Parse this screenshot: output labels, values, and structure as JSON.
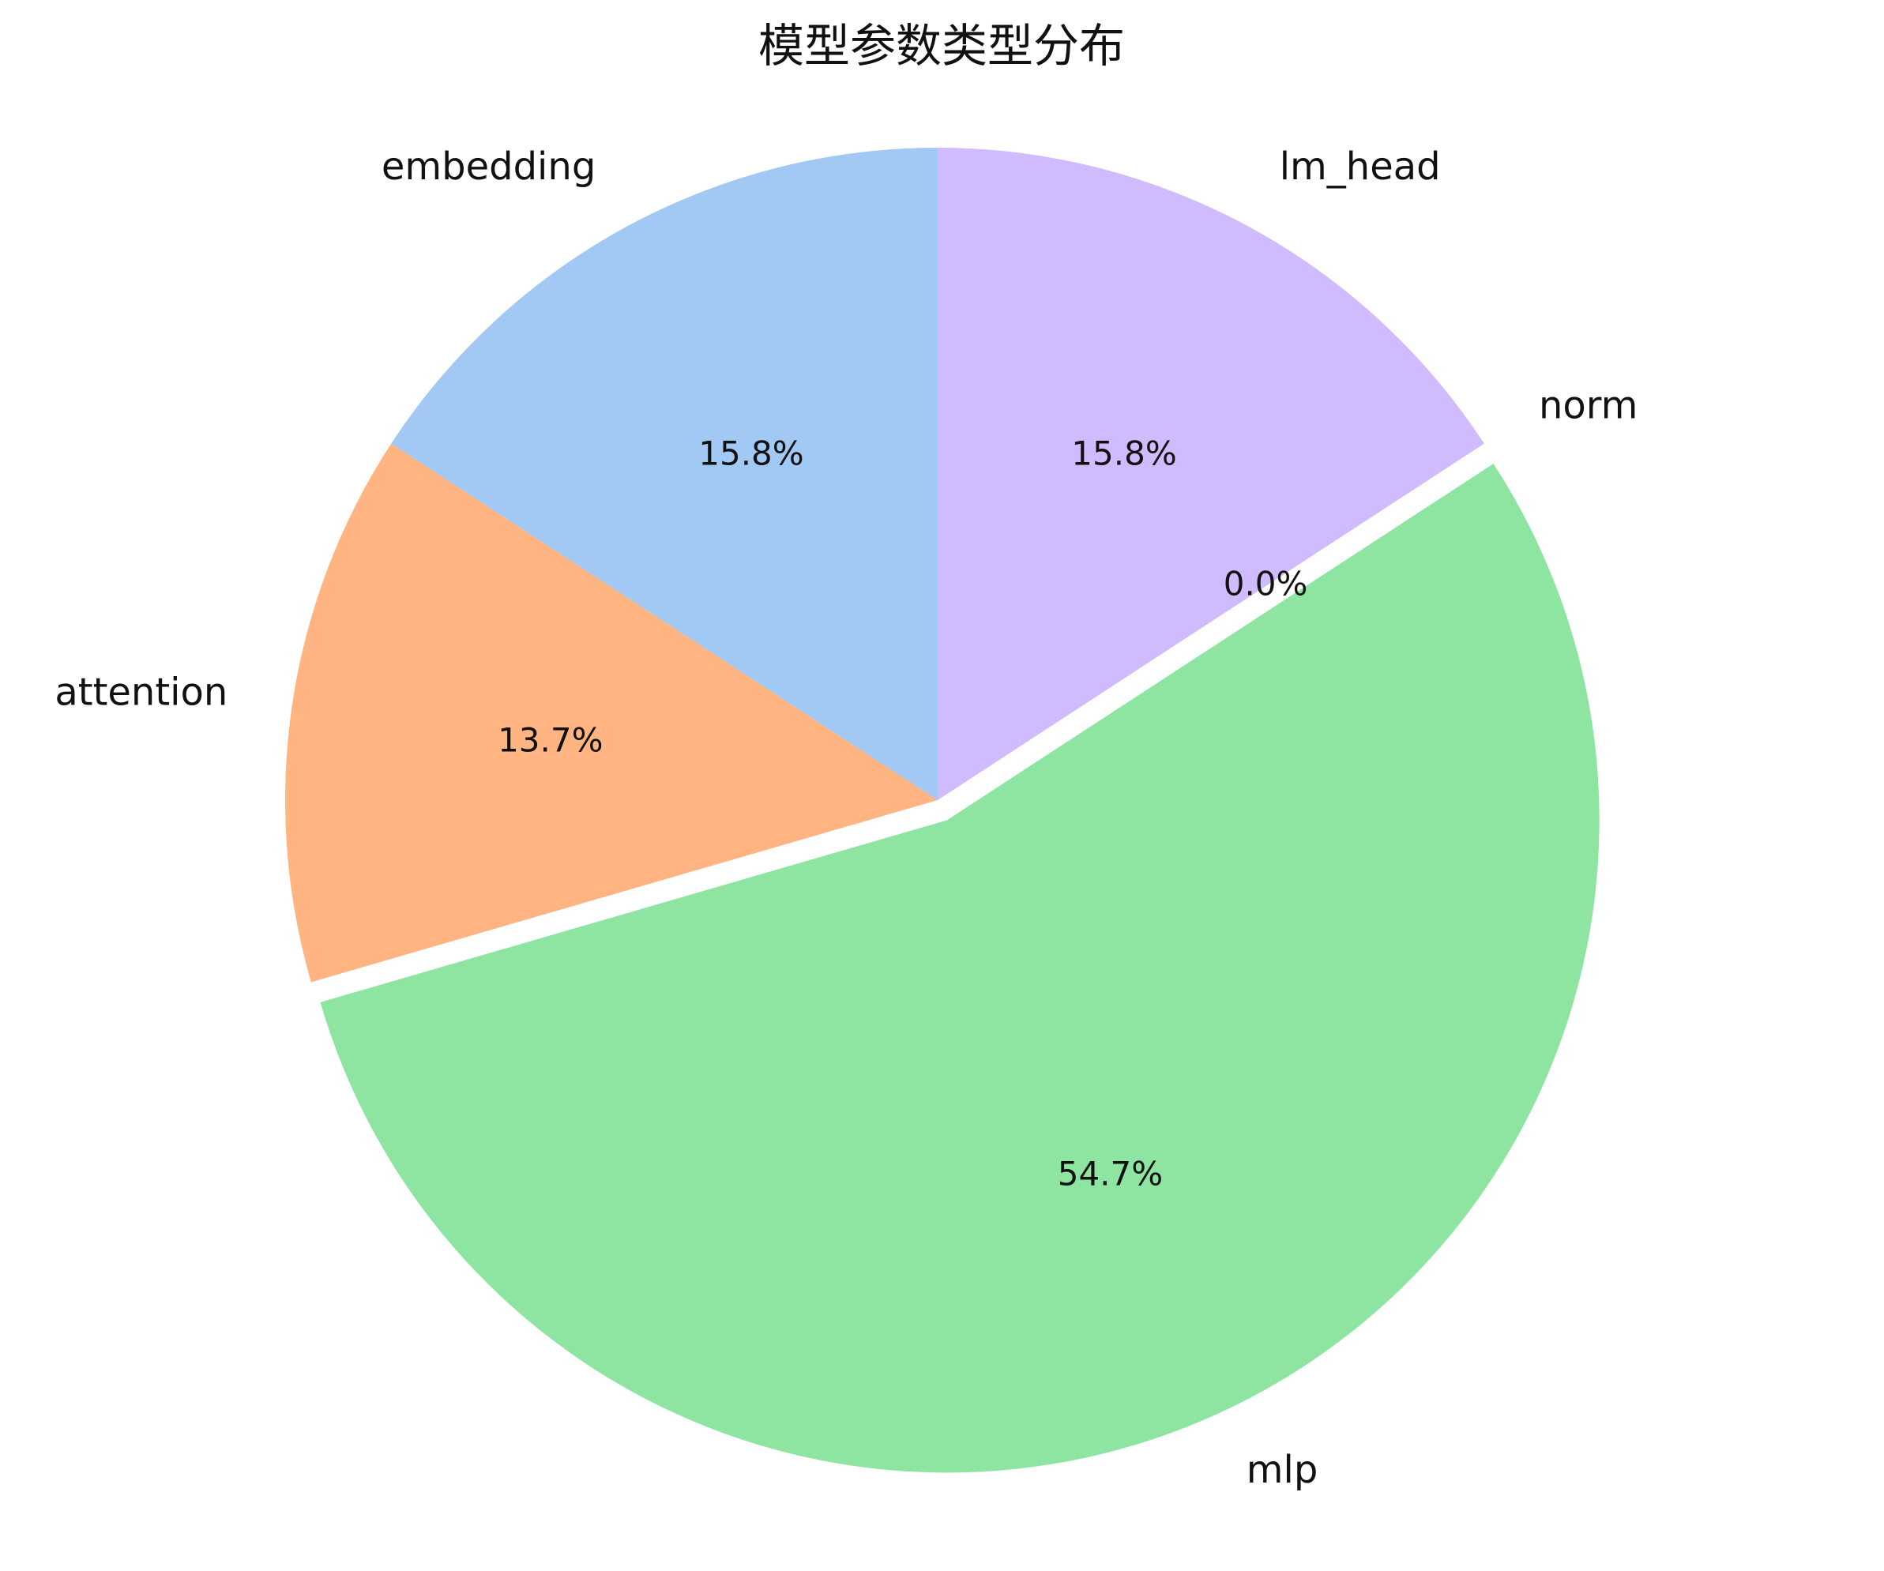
{
  "chart_data": {
    "type": "pie",
    "title": "模型参数类型分布",
    "categories": [
      "embedding",
      "attention",
      "mlp",
      "norm",
      "lm_head"
    ],
    "values": [
      15.8,
      13.7,
      54.7,
      0.0,
      15.8
    ],
    "percent_labels": [
      "15.8%",
      "13.7%",
      "54.7%",
      "0.0%",
      "15.8%"
    ],
    "colors": [
      "#a1c9f4",
      "#ffb482",
      "#8de5a1",
      "#ff9f9b",
      "#d0bbff"
    ],
    "exploded": [
      "mlp"
    ],
    "start_angle_deg": 90,
    "direction": "counterclockwise",
    "legend": "none"
  }
}
